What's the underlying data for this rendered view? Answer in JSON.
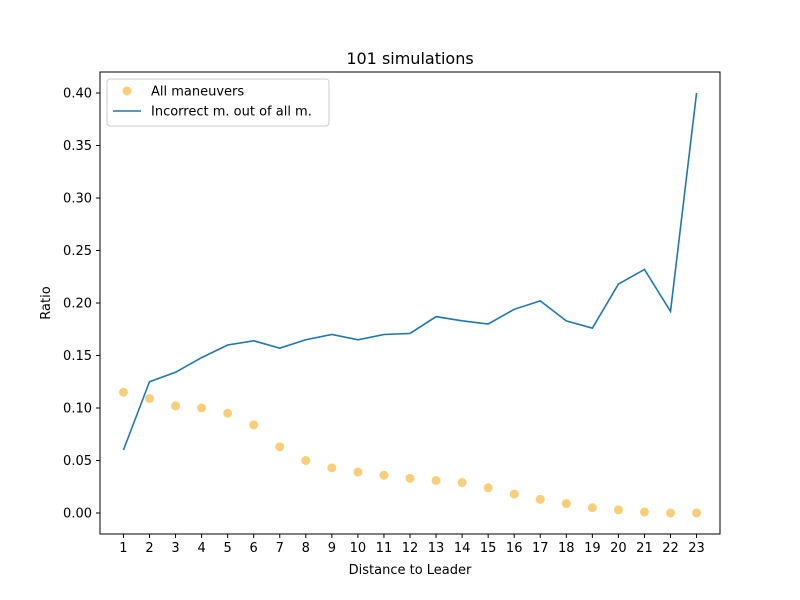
{
  "chart_data": {
    "type": "line",
    "title": "101 simulations",
    "xlabel": "Distance to Leader",
    "ylabel": "Ratio",
    "x": [
      1,
      2,
      3,
      4,
      5,
      6,
      7,
      8,
      9,
      10,
      11,
      12,
      13,
      14,
      15,
      16,
      17,
      18,
      19,
      20,
      21,
      22,
      23
    ],
    "x_ticks": [
      "1",
      "2",
      "3",
      "4",
      "5",
      "6",
      "7",
      "8",
      "9",
      "10",
      "11",
      "12",
      "13",
      "14",
      "15",
      "16",
      "17",
      "18",
      "19",
      "20",
      "21",
      "22",
      "23"
    ],
    "y_ticks": [
      "0.00",
      "0.05",
      "0.10",
      "0.15",
      "0.20",
      "0.25",
      "0.30",
      "0.35",
      "0.40"
    ],
    "y_tick_values": [
      0.0,
      0.05,
      0.1,
      0.15,
      0.2,
      0.25,
      0.3,
      0.35,
      0.4
    ],
    "ylim": [
      -0.02,
      0.42
    ],
    "xlim": [
      0.1,
      23.9
    ],
    "grid": false,
    "legend_position": "top-left",
    "series": [
      {
        "name": "All maneuvers",
        "kind": "scatter",
        "color": "#f5b942",
        "values": [
          0.115,
          0.109,
          0.102,
          0.1,
          0.095,
          0.084,
          0.063,
          0.05,
          0.043,
          0.039,
          0.036,
          0.033,
          0.031,
          0.029,
          0.024,
          0.018,
          0.013,
          0.009,
          0.005,
          0.003,
          0.001,
          0.0,
          0.0
        ]
      },
      {
        "name": "Incorrect m. out of all m.",
        "kind": "line",
        "color": "#1f77b4",
        "values": [
          0.06,
          0.125,
          0.134,
          0.148,
          0.16,
          0.164,
          0.157,
          0.165,
          0.17,
          0.165,
          0.17,
          0.171,
          0.187,
          0.183,
          0.18,
          0.194,
          0.202,
          0.183,
          0.176,
          0.218,
          0.232,
          0.192,
          0.4
        ]
      }
    ]
  }
}
